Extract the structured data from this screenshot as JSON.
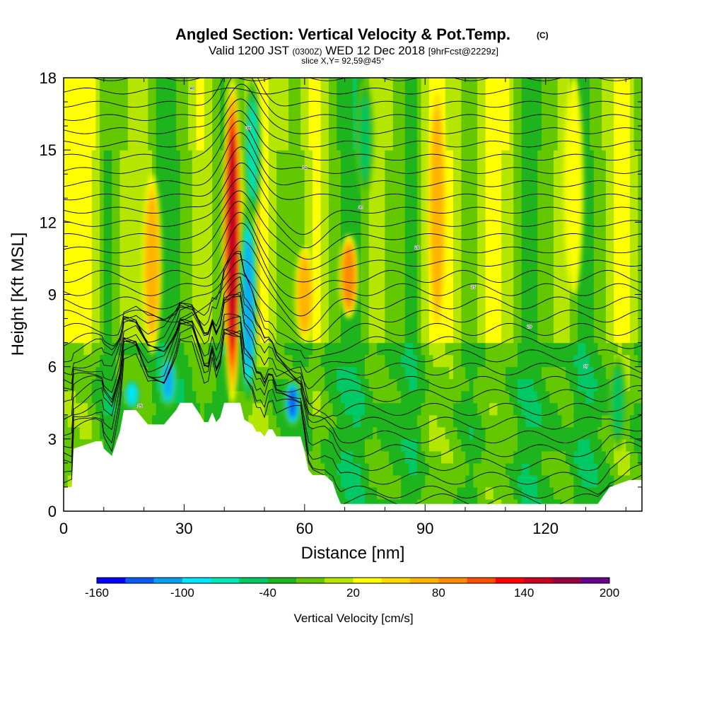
{
  "chart_data": {
    "type": "heatmap",
    "title": "Angled Section: Vertical Velocity & Pot.Temp.",
    "title_unit": "(C)",
    "subtitle_parts": [
      "Valid 1200 JST",
      "(0300Z)",
      "WED 12 Dec 2018",
      "[9hrFcst@2229z]"
    ],
    "slice_label": "slice X,Y= 92,59@45°",
    "xlabel": "Distance [nm]",
    "ylabel": "Height [Kft MSL]",
    "xlim": [
      0,
      144
    ],
    "ylim": [
      0,
      18
    ],
    "x_ticks": [
      0,
      30,
      60,
      90,
      120
    ],
    "y_ticks": [
      0,
      3,
      6,
      9,
      12,
      15,
      18
    ],
    "grid": false,
    "colorbar": {
      "label": "Vertical Velocity [cm/s]",
      "min": -160,
      "max": 200,
      "step": 20,
      "tick_labels": [
        "-160",
        "-100",
        "-40",
        "20",
        "80",
        "140",
        "200"
      ],
      "colors": [
        "#0000ff",
        "#0a5cf5",
        "#0aa0f0",
        "#00e6ff",
        "#00e6b4",
        "#00c864",
        "#1eb41e",
        "#64c800",
        "#b4e600",
        "#ffff00",
        "#ffd700",
        "#ffb400",
        "#ff8c00",
        "#ff5000",
        "#ff0000",
        "#c8001e",
        "#960046",
        "#64008c"
      ]
    },
    "velocity_features": [
      {
        "center_nm": 42,
        "from_kft": 4.5,
        "to_kft": 18,
        "value_cms": 150,
        "kind": "updraft"
      },
      {
        "center_nm": 46,
        "from_kft": 4.2,
        "to_kft": 13,
        "value_cms": -110,
        "kind": "downdraft"
      },
      {
        "center_nm": 47,
        "from_kft": 12,
        "to_kft": 18,
        "value_cms": -70,
        "kind": "downdraft"
      },
      {
        "center_nm": 22,
        "from_kft": 6.5,
        "to_kft": 14,
        "value_cms": 70,
        "kind": "updraft"
      },
      {
        "center_nm": 26,
        "from_kft": 4.3,
        "to_kft": 6.5,
        "value_cms": -120,
        "kind": "downdraft"
      },
      {
        "center_nm": 17,
        "from_kft": 4.2,
        "to_kft": 5.5,
        "value_cms": -100,
        "kind": "downdraft"
      },
      {
        "center_nm": 57,
        "from_kft": 3.5,
        "to_kft": 5.5,
        "value_cms": -130,
        "kind": "downdraft"
      },
      {
        "center_nm": 60,
        "from_kft": 7,
        "to_kft": 11,
        "value_cms": 70,
        "kind": "updraft"
      },
      {
        "center_nm": 71,
        "from_kft": 8,
        "to_kft": 11.5,
        "value_cms": 90,
        "kind": "updraft"
      },
      {
        "center_nm": 75,
        "from_kft": 13,
        "to_kft": 18,
        "value_cms": -60,
        "kind": "downdraft"
      },
      {
        "center_nm": 93,
        "from_kft": 7,
        "to_kft": 18,
        "value_cms": 75,
        "kind": "updraft"
      },
      {
        "center_nm": 127,
        "from_kft": 9,
        "to_kft": 18,
        "value_cms": 30,
        "kind": "updraft"
      },
      {
        "center_nm": 138,
        "from_kft": 2.5,
        "to_kft": 6.5,
        "value_cms": -50,
        "kind": "downdraft"
      }
    ],
    "terrain_kft": {
      "x": [
        0,
        2,
        2.5,
        8,
        9.5,
        10,
        12,
        14,
        15,
        16,
        17,
        18,
        19,
        20,
        21,
        25,
        26,
        28,
        29,
        32,
        34,
        35,
        36,
        37,
        38,
        39,
        40,
        42,
        43,
        44,
        45,
        47,
        48,
        49,
        50,
        51,
        52,
        53,
        54,
        58,
        59,
        60,
        61,
        62,
        63,
        64,
        65,
        67,
        68,
        69,
        70,
        72,
        76,
        80,
        85,
        90,
        95,
        100,
        105,
        110,
        114,
        116,
        121,
        126,
        131,
        133,
        136,
        141,
        144
      ],
      "y": [
        1.0,
        1.0,
        2.6,
        2.9,
        2.9,
        2.6,
        2.3,
        3.3,
        4.2,
        4.2,
        4.2,
        4.2,
        4.0,
        3.8,
        3.6,
        3.6,
        3.8,
        4.2,
        4.5,
        4.5,
        4.0,
        3.7,
        3.7,
        4.1,
        3.7,
        3.9,
        4.5,
        4.5,
        4.5,
        4.5,
        3.8,
        3.6,
        3.3,
        3.3,
        3.1,
        3.4,
        3.4,
        3.1,
        3.1,
        3.1,
        3.1,
        2.5,
        1.7,
        1.5,
        1.5,
        1.5,
        1.5,
        1.2,
        0.7,
        0.3,
        0.3,
        0.3,
        0.3,
        0.3,
        0.3,
        0.3,
        0.3,
        0.3,
        0.3,
        0.3,
        0.3,
        0.3,
        0.3,
        0.3,
        0.3,
        0.3,
        1.0,
        1.3,
        1.3
      ]
    },
    "theta_contours": {
      "label_sample": [
        "5",
        "10",
        "15",
        "17",
        "20",
        "25",
        "28",
        "30",
        "34",
        "36",
        "40",
        "45",
        "50"
      ],
      "count": 33
    }
  }
}
